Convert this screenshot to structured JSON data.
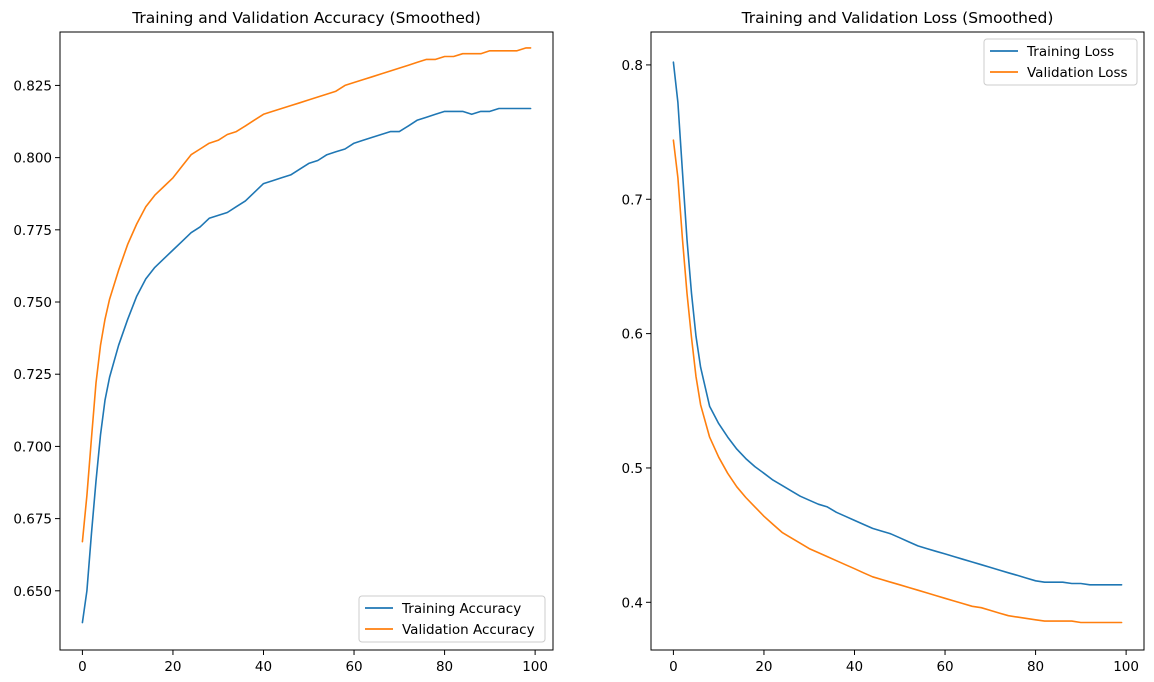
{
  "chart_data": [
    {
      "type": "line",
      "title": "Training and Validation Accuracy (Smoothed)",
      "xlabel": "",
      "ylabel": "",
      "xlim": [
        -4.95,
        103.95
      ],
      "ylim": [
        0.6295,
        0.8435
      ],
      "xticks": [
        0,
        20,
        40,
        60,
        80,
        100
      ],
      "yticks": [
        0.65,
        0.675,
        0.7,
        0.725,
        0.75,
        0.775,
        0.8,
        0.825
      ],
      "ytick_labels": [
        "0.650",
        "0.675",
        "0.700",
        "0.725",
        "0.750",
        "0.775",
        "0.800",
        "0.825"
      ],
      "grid": false,
      "legend_position": "lower-right",
      "x": [
        0,
        1,
        2,
        3,
        4,
        5,
        6,
        8,
        10,
        12,
        14,
        16,
        18,
        20,
        22,
        24,
        26,
        28,
        30,
        32,
        34,
        36,
        38,
        40,
        42,
        44,
        46,
        48,
        50,
        52,
        54,
        56,
        58,
        60,
        62,
        64,
        66,
        68,
        70,
        72,
        74,
        76,
        78,
        80,
        82,
        84,
        86,
        88,
        90,
        92,
        94,
        96,
        98,
        99
      ],
      "series": [
        {
          "name": "Training Accuracy",
          "color": "#1f77b4",
          "values": [
            0.639,
            0.65,
            0.67,
            0.688,
            0.704,
            0.716,
            0.724,
            0.735,
            0.744,
            0.752,
            0.758,
            0.762,
            0.765,
            0.768,
            0.771,
            0.774,
            0.776,
            0.779,
            0.78,
            0.781,
            0.783,
            0.785,
            0.788,
            0.791,
            0.792,
            0.793,
            0.794,
            0.796,
            0.798,
            0.799,
            0.801,
            0.802,
            0.803,
            0.805,
            0.806,
            0.807,
            0.808,
            0.809,
            0.809,
            0.811,
            0.813,
            0.814,
            0.815,
            0.816,
            0.816,
            0.816,
            0.815,
            0.816,
            0.816,
            0.817,
            0.817,
            0.817,
            0.817,
            0.817
          ]
        },
        {
          "name": "Validation Accuracy",
          "color": "#ff7f0e",
          "values": [
            0.667,
            0.683,
            0.703,
            0.722,
            0.735,
            0.744,
            0.751,
            0.761,
            0.77,
            0.777,
            0.783,
            0.787,
            0.79,
            0.793,
            0.797,
            0.801,
            0.803,
            0.805,
            0.806,
            0.808,
            0.809,
            0.811,
            0.813,
            0.815,
            0.816,
            0.817,
            0.818,
            0.819,
            0.82,
            0.821,
            0.822,
            0.823,
            0.825,
            0.826,
            0.827,
            0.828,
            0.829,
            0.83,
            0.831,
            0.832,
            0.833,
            0.834,
            0.834,
            0.835,
            0.835,
            0.836,
            0.836,
            0.836,
            0.837,
            0.837,
            0.837,
            0.837,
            0.838,
            0.838
          ]
        }
      ]
    },
    {
      "type": "line",
      "title": "Training and Validation Loss (Smoothed)",
      "xlabel": "",
      "ylabel": "",
      "xlim": [
        -4.95,
        103.95
      ],
      "ylim": [
        0.3645,
        0.8245
      ],
      "xticks": [
        0,
        20,
        40,
        60,
        80,
        100
      ],
      "yticks": [
        0.4,
        0.5,
        0.6,
        0.7,
        0.8
      ],
      "ytick_labels": [
        "0.4",
        "0.5",
        "0.6",
        "0.7",
        "0.8"
      ],
      "grid": false,
      "legend_position": "upper-right",
      "x": [
        0,
        1,
        2,
        3,
        4,
        5,
        6,
        8,
        10,
        12,
        14,
        16,
        18,
        20,
        22,
        24,
        26,
        28,
        30,
        32,
        34,
        36,
        38,
        40,
        42,
        44,
        46,
        48,
        50,
        52,
        54,
        56,
        58,
        60,
        62,
        64,
        66,
        68,
        70,
        72,
        74,
        76,
        78,
        80,
        82,
        84,
        86,
        88,
        90,
        92,
        94,
        96,
        98,
        99
      ],
      "series": [
        {
          "name": "Training Loss",
          "color": "#1f77b4",
          "values": [
            0.802,
            0.772,
            0.72,
            0.67,
            0.63,
            0.598,
            0.575,
            0.546,
            0.533,
            0.523,
            0.514,
            0.507,
            0.501,
            0.496,
            0.491,
            0.487,
            0.483,
            0.479,
            0.476,
            0.473,
            0.471,
            0.467,
            0.464,
            0.461,
            0.458,
            0.455,
            0.453,
            0.451,
            0.448,
            0.445,
            0.442,
            0.44,
            0.438,
            0.436,
            0.434,
            0.432,
            0.43,
            0.428,
            0.426,
            0.424,
            0.422,
            0.42,
            0.418,
            0.416,
            0.415,
            0.415,
            0.415,
            0.414,
            0.414,
            0.413,
            0.413,
            0.413,
            0.413,
            0.413
          ]
        },
        {
          "name": "Validation Loss",
          "color": "#ff7f0e",
          "values": [
            0.744,
            0.716,
            0.67,
            0.63,
            0.597,
            0.568,
            0.547,
            0.523,
            0.508,
            0.496,
            0.486,
            0.478,
            0.471,
            0.464,
            0.458,
            0.452,
            0.448,
            0.444,
            0.44,
            0.437,
            0.434,
            0.431,
            0.428,
            0.425,
            0.422,
            0.419,
            0.417,
            0.415,
            0.413,
            0.411,
            0.409,
            0.407,
            0.405,
            0.403,
            0.401,
            0.399,
            0.397,
            0.396,
            0.394,
            0.392,
            0.39,
            0.389,
            0.388,
            0.387,
            0.386,
            0.386,
            0.386,
            0.386,
            0.385,
            0.385,
            0.385,
            0.385,
            0.385,
            0.385
          ]
        }
      ]
    }
  ]
}
